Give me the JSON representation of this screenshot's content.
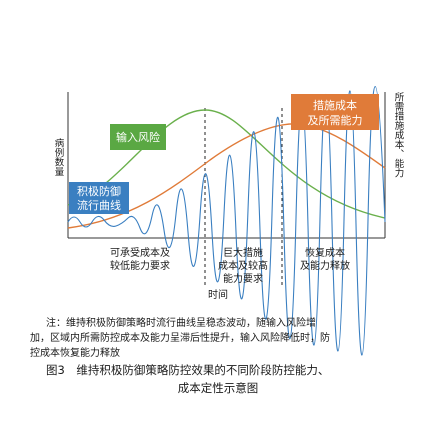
{
  "figure": {
    "y_label": "病例数量",
    "y2_label": "所需措施成本、能力",
    "input_risk": "输入风险",
    "cost_box": [
      "措施成本",
      "及所需能力"
    ],
    "curve_box": [
      "积极防御",
      "流行曲线"
    ],
    "phases": [
      [
        "可承受成本及",
        "较低能力要求"
      ],
      [
        "巨大措施",
        "成本及较高",
        "能力要求"
      ],
      [
        "恢复成本",
        "及能力释放"
      ]
    ],
    "x_label": "时间"
  },
  "note": [
    "注：维持积极防御策略时流行曲线呈稳态波动，随输入风险增",
    "加，区域内所需防控成本及能力呈滞后性提升，输入风险降低时，防",
    "控成本恢复能力释放"
  ],
  "caption": [
    "图3　维持积极防御策略防控效果的不同阶段防控能力、",
    "成本定性示意图"
  ]
}
